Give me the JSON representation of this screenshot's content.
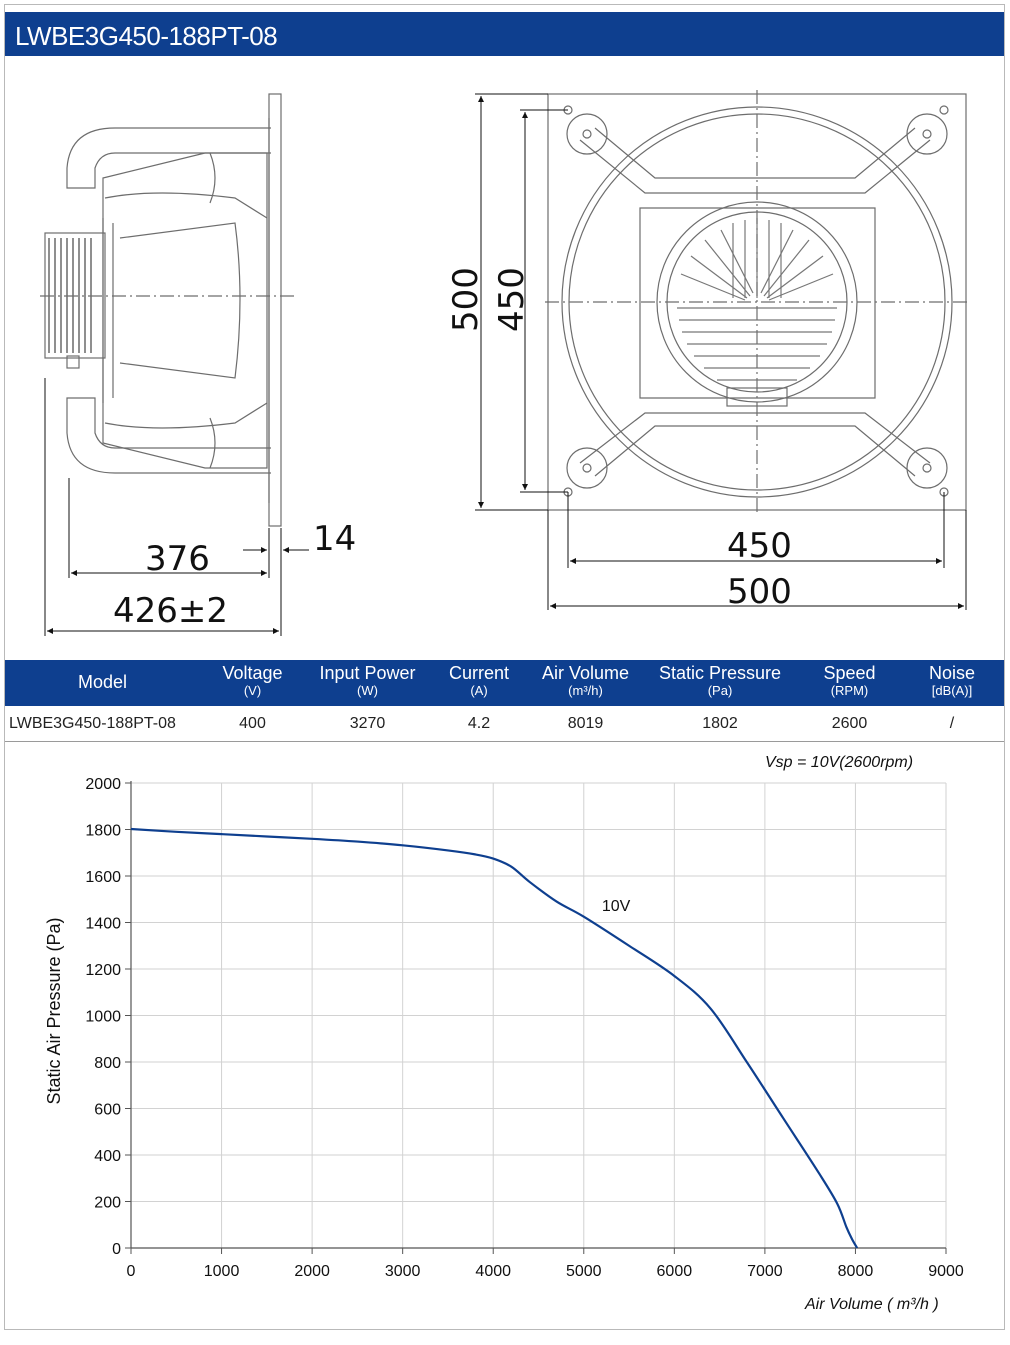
{
  "title": "LWBE3G450-188PT-08",
  "drawing": {
    "side_dims": {
      "flange": "14",
      "depth": "376",
      "total": "426±2"
    },
    "front_dims": {
      "height_outer": "500",
      "height_inner": "450",
      "width_inner": "450",
      "width_outer": "500"
    }
  },
  "table": {
    "headers": [
      {
        "label": "Model",
        "unit": ""
      },
      {
        "label": "Voltage",
        "unit": "(V)"
      },
      {
        "label": "Input Power",
        "unit": "(W)"
      },
      {
        "label": "Current",
        "unit": "(A)"
      },
      {
        "label": "Air Volume",
        "unit": "(m³/h)"
      },
      {
        "label": "Static Pressure",
        "unit": "(Pa)"
      },
      {
        "label": "Speed",
        "unit": "(RPM)"
      },
      {
        "label": "Noise",
        "unit": "[dB(A)]"
      }
    ],
    "row": [
      "LWBE3G450-188PT-08",
      "400",
      "3270",
      "4.2",
      "8019",
      "1802",
      "2600",
      "/"
    ]
  },
  "chart_data": {
    "type": "line",
    "title": "",
    "note": "Vsp = 10V(2600rpm)",
    "xlabel": "Air Volume ( m³/h )",
    "ylabel": "Static Air Pressure  (Pa)",
    "xlim": [
      0,
      9000
    ],
    "ylim": [
      0,
      2000
    ],
    "xticks": [
      0,
      1000,
      2000,
      3000,
      4000,
      5000,
      6000,
      7000,
      8000,
      9000
    ],
    "yticks": [
      0,
      200,
      400,
      600,
      800,
      1000,
      1200,
      1400,
      1600,
      1800,
      2000
    ],
    "grid": true,
    "series": [
      {
        "name": "10V",
        "color": "#0e3f8f",
        "x": [
          0,
          500,
          1000,
          1500,
          2000,
          2500,
          3000,
          3500,
          3800,
          4000,
          4200,
          4400,
          4700,
          5000,
          5500,
          6000,
          6400,
          6800,
          7200,
          7600,
          7800,
          7900,
          7960,
          8019
        ],
        "y": [
          1802,
          1790,
          1780,
          1770,
          1760,
          1748,
          1732,
          1710,
          1693,
          1675,
          1640,
          1575,
          1490,
          1425,
          1300,
          1170,
          1030,
          800,
          560,
          320,
          190,
          90,
          40,
          0
        ]
      }
    ]
  }
}
